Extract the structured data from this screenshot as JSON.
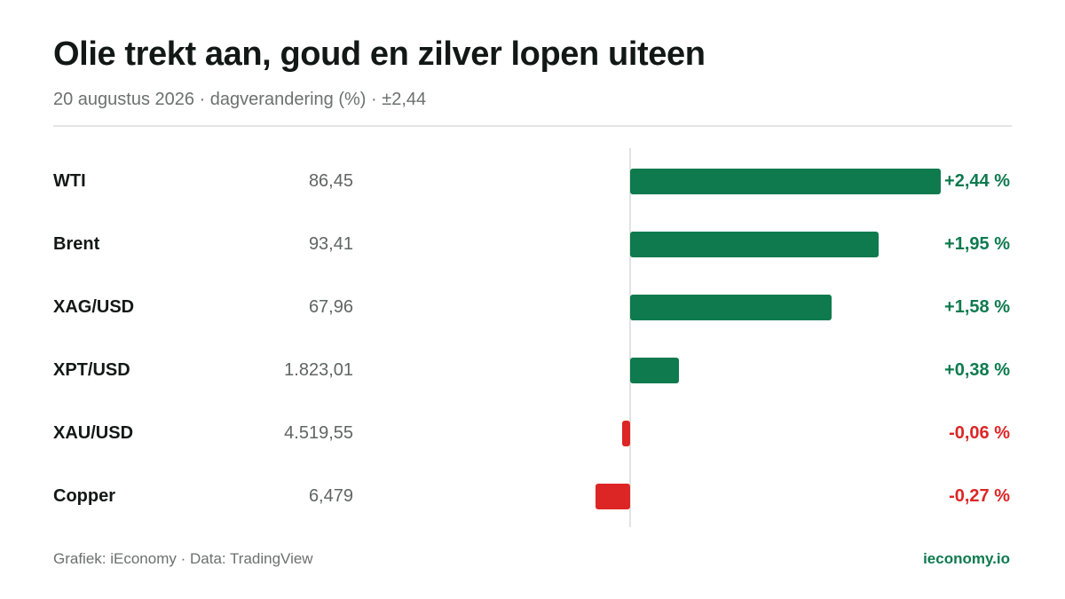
{
  "header": {
    "title": "Olie trekt aan, goud en zilver lopen uiteen",
    "subtitle": "20 augustus 2026 · dagverandering (%) · ±2,44"
  },
  "footer": {
    "source": "Grafiek: iEconomy · Data: TradingView",
    "brand": "ieconomy.io"
  },
  "colors": {
    "positive": "#0e7a4e",
    "negative": "#dc2626",
    "brand": "#0e7a4e"
  },
  "chart_data": {
    "type": "bar",
    "orientation": "horizontal",
    "title": "Olie trekt aan, goud en zilver lopen uiteen",
    "subtitle": "20 augustus 2026 · dagverandering (%) · ±2,44",
    "categories": [
      "WTI",
      "Brent",
      "XAG/USD",
      "XPT/USD",
      "XAU/USD",
      "Copper"
    ],
    "prices": [
      "86,45",
      "93,41",
      "67,96",
      "1.823,01",
      "4.519,55",
      "6,479"
    ],
    "values": [
      2.44,
      1.95,
      1.58,
      0.38,
      -0.06,
      -0.27
    ],
    "value_labels": [
      "+2,44 %",
      "+1,95 %",
      "+1,58 %",
      "+0,38 %",
      "-0,06 %",
      "-0,27 %"
    ],
    "xlim": [
      -2.44,
      2.44
    ],
    "grid": false,
    "legend": "none"
  }
}
